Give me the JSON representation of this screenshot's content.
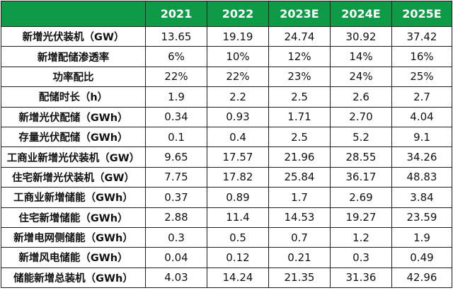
{
  "colors": {
    "header_bg": "#0f9a48",
    "header_text": "#ffffff",
    "border": "#1f1f1f",
    "cell_text": "#111111"
  },
  "table": {
    "corner": "",
    "columns": [
      "2021",
      "2022",
      "2023E",
      "2024E",
      "2025E"
    ],
    "rows": [
      {
        "label": "新增光伏装机（GW）",
        "values": [
          "13.65",
          "19.19",
          "24.74",
          "30.92",
          "37.42"
        ]
      },
      {
        "label": "新增配储渗透率",
        "values": [
          "6%",
          "10%",
          "12%",
          "14%",
          "16%"
        ]
      },
      {
        "label": "功率配比",
        "values": [
          "22%",
          "22%",
          "23%",
          "24%",
          "25%"
        ]
      },
      {
        "label": "配储时长（h）",
        "values": [
          "1.9",
          "2.2",
          "2.5",
          "2.6",
          "2.7"
        ]
      },
      {
        "label": "新增光伏配储（GWh）",
        "values": [
          "0.34",
          "0.93",
          "1.71",
          "2.70",
          "4.04"
        ]
      },
      {
        "label": "存量光伏配储（GWh）",
        "values": [
          "0.1",
          "0.4",
          "2.5",
          "5.2",
          "9.1"
        ]
      },
      {
        "label": "工商业新增光伏装机（GW）",
        "values": [
          "9.65",
          "17.57",
          "21.96",
          "28.55",
          "34.26"
        ]
      },
      {
        "label": "住宅新增光伏装机（GW）",
        "values": [
          "7.75",
          "17.82",
          "25.84",
          "36.17",
          "48.83"
        ]
      },
      {
        "label": "工商业新增储能（GWh）",
        "values": [
          "0.37",
          "0.89",
          "1.7",
          "2.69",
          "3.84"
        ]
      },
      {
        "label": "住宅新增储能（GWh）",
        "values": [
          "2.88",
          "11.4",
          "14.53",
          "19.27",
          "23.59"
        ]
      },
      {
        "label": "新增电网侧储能（GWh）",
        "values": [
          "0.3",
          "0.5",
          "0.7",
          "1.2",
          "1.9"
        ]
      },
      {
        "label": "新增风电储能（GWh）",
        "values": [
          "0.04",
          "0.12",
          "0.21",
          "0.3",
          "0.49"
        ]
      },
      {
        "label": "储能新增总装机（GWh）",
        "values": [
          "4.03",
          "14.24",
          "21.35",
          "31.36",
          "42.96"
        ]
      }
    ]
  }
}
